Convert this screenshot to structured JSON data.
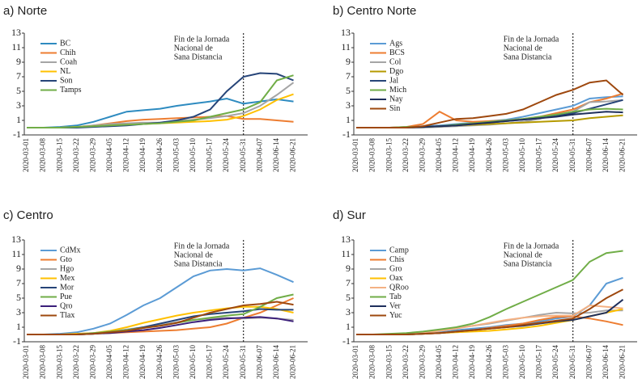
{
  "chart_data": [
    {
      "type": "line",
      "title": "a) Norte",
      "legend": "upper left",
      "vline_x": "2020-05-31",
      "annotation": [
        "Fin de la Jornada",
        "Nacional de",
        "Sana Distancia"
      ],
      "ylim": [
        -1,
        13
      ],
      "yticks": [
        -1,
        1,
        3,
        5,
        7,
        9,
        11,
        13
      ],
      "x": [
        "2020-03-01",
        "2020-03-08",
        "2020-03-15",
        "2020-03-22",
        "2020-03-29",
        "2020-04-05",
        "2020-04-12",
        "2020-04-19",
        "2020-04-26",
        "2020-05-03",
        "2020-05-10",
        "2020-05-17",
        "2020-05-24",
        "2020-05-31",
        "2020-06-07",
        "2020-06-14",
        "2020-06-21"
      ],
      "series": [
        {
          "name": "BC",
          "color": "#2e8bc0",
          "values": [
            0,
            0,
            0.1,
            0.3,
            0.8,
            1.5,
            2.2,
            2.4,
            2.6,
            3.0,
            3.3,
            3.6,
            4.0,
            3.3,
            3.6,
            3.9,
            3.6
          ]
        },
        {
          "name": "Chih",
          "color": "#ed7d31",
          "values": [
            0,
            0,
            0,
            0.1,
            0.3,
            0.6,
            0.9,
            1.1,
            1.2,
            1.3,
            1.4,
            1.5,
            1.6,
            1.2,
            1.2,
            1.0,
            0.8
          ]
        },
        {
          "name": "Coah",
          "color": "#a5a5a5",
          "values": [
            0,
            0,
            0,
            0.1,
            0.3,
            0.5,
            0.6,
            0.7,
            0.7,
            0.9,
            1.1,
            1.3,
            1.6,
            2.0,
            3.0,
            4.5,
            6.2
          ]
        },
        {
          "name": "NL",
          "color": "#ffc000",
          "values": [
            0,
            0,
            0,
            0.1,
            0.2,
            0.3,
            0.4,
            0.5,
            0.6,
            0.7,
            0.8,
            0.9,
            1.1,
            1.6,
            2.5,
            3.8,
            4.6
          ]
        },
        {
          "name": "Son",
          "color": "#264478",
          "values": [
            0,
            0,
            0,
            0,
            0.1,
            0.2,
            0.3,
            0.5,
            0.7,
            1.0,
            1.5,
            2.5,
            5.0,
            7.0,
            7.5,
            7.4,
            6.5
          ]
        },
        {
          "name": "Tamps",
          "color": "#70ad47",
          "values": [
            0,
            0,
            0,
            0.1,
            0.2,
            0.3,
            0.4,
            0.5,
            0.6,
            0.8,
            1.0,
            1.5,
            2.0,
            2.5,
            3.5,
            6.5,
            7.2
          ]
        }
      ]
    },
    {
      "type": "line",
      "title": "b) Centro Norte",
      "legend": "upper left",
      "vline_x": "2020-05-31",
      "annotation": [
        "Fin de la Jornada",
        "Nacional de",
        "Sana Distancia"
      ],
      "ylim": [
        -1,
        13
      ],
      "yticks": [
        -1,
        1,
        3,
        5,
        7,
        9,
        11,
        13
      ],
      "x": [
        "2020-03-01",
        "2020-03-08",
        "2020-03-15",
        "2020-03-22",
        "2020-03-29",
        "2020-04-05",
        "2020-04-12",
        "2020-04-19",
        "2020-04-26",
        "2020-05-03",
        "2020-05-10",
        "2020-05-17",
        "2020-05-24",
        "2020-05-31",
        "2020-06-07",
        "2020-06-14",
        "2020-06-21"
      ],
      "series": [
        {
          "name": "Ags",
          "color": "#5b9bd5",
          "values": [
            0,
            0,
            0,
            0.1,
            0.2,
            0.3,
            0.5,
            0.7,
            0.9,
            1.1,
            1.5,
            2.0,
            2.5,
            3.0,
            4.0,
            4.2,
            4.3
          ]
        },
        {
          "name": "BCS",
          "color": "#ed7d31",
          "values": [
            0,
            0,
            0,
            0.1,
            0.5,
            2.2,
            1.0,
            0.8,
            0.9,
            1.0,
            1.2,
            1.5,
            2.0,
            2.5,
            3.5,
            4.0,
            4.7
          ]
        },
        {
          "name": "Col",
          "color": "#a5a5a5",
          "values": [
            0,
            0,
            0,
            0,
            0,
            0.1,
            0.2,
            0.3,
            0.4,
            0.6,
            0.8,
            1.2,
            1.8,
            2.2,
            3.5,
            3.6,
            3.8
          ]
        },
        {
          "name": "Dgo",
          "color": "#b59a00",
          "values": [
            0,
            0,
            0,
            0,
            0.1,
            0.2,
            0.3,
            0.4,
            0.5,
            0.6,
            0.7,
            0.8,
            0.9,
            1.0,
            1.3,
            1.5,
            1.7
          ]
        },
        {
          "name": "Jal",
          "color": "#264478",
          "values": [
            0,
            0,
            0,
            0,
            0.1,
            0.2,
            0.3,
            0.5,
            0.7,
            0.9,
            1.1,
            1.3,
            1.6,
            2.0,
            2.6,
            3.2,
            3.8
          ]
        },
        {
          "name": "Mich",
          "color": "#70ad47",
          "values": [
            0,
            0,
            0,
            0.1,
            0.1,
            0.2,
            0.4,
            0.6,
            0.8,
            1.0,
            1.2,
            1.5,
            1.8,
            2.2,
            2.5,
            2.6,
            2.5
          ]
        },
        {
          "name": "Nay",
          "color": "#1f2f5c",
          "values": [
            0,
            0,
            0,
            0,
            0.1,
            0.2,
            0.3,
            0.5,
            0.7,
            0.9,
            1.1,
            1.3,
            1.5,
            1.8,
            2.0,
            2.2,
            2.1
          ]
        },
        {
          "name": "Sin",
          "color": "#9e480e",
          "values": [
            0,
            0,
            0,
            0,
            0.2,
            0.7,
            1.2,
            1.3,
            1.6,
            1.9,
            2.5,
            3.5,
            4.5,
            5.2,
            6.2,
            6.5,
            4.5
          ]
        }
      ]
    },
    {
      "type": "line",
      "title": "c) Centro",
      "legend": "upper left",
      "vline_x": "2020-05-31",
      "annotation": [
        "Fin de la Jornada",
        "Nacional de",
        "Sana Distancia"
      ],
      "ylim": [
        -1,
        13
      ],
      "yticks": [
        -1,
        1,
        3,
        5,
        7,
        9,
        11,
        13
      ],
      "x": [
        "2020-03-01",
        "2020-03-08",
        "2020-03-15",
        "2020-03-22",
        "2020-03-29",
        "2020-04-05",
        "2020-04-12",
        "2020-04-19",
        "2020-04-26",
        "2020-05-03",
        "2020-05-10",
        "2020-05-17",
        "2020-05-24",
        "2020-05-31",
        "2020-06-07",
        "2020-06-14",
        "2020-06-21"
      ],
      "series": [
        {
          "name": "CdMx",
          "color": "#5b9bd5",
          "values": [
            0,
            0,
            0.1,
            0.3,
            0.8,
            1.5,
            2.7,
            4.0,
            5.0,
            6.5,
            8.0,
            8.8,
            9.0,
            8.8,
            9.1,
            8.2,
            7.2
          ]
        },
        {
          "name": "Gto",
          "color": "#ed7d31",
          "values": [
            0,
            0,
            0,
            0,
            0.1,
            0.2,
            0.3,
            0.4,
            0.5,
            0.6,
            0.8,
            1.0,
            1.5,
            2.3,
            3.0,
            4.0,
            5.0
          ]
        },
        {
          "name": "Hgo",
          "color": "#a5a5a5",
          "values": [
            0,
            0,
            0,
            0.1,
            0.2,
            0.4,
            0.7,
            1.0,
            1.3,
            1.7,
            2.0,
            2.2,
            2.3,
            2.2,
            2.3,
            2.2,
            2.0
          ]
        },
        {
          "name": "Mex",
          "color": "#ffc000",
          "values": [
            0,
            0,
            0,
            0.1,
            0.2,
            0.5,
            1.0,
            1.6,
            2.1,
            2.6,
            3.0,
            3.3,
            3.6,
            3.8,
            3.8,
            3.5,
            3.0
          ]
        },
        {
          "name": "Mor",
          "color": "#264478",
          "values": [
            0,
            0,
            0,
            0,
            0.1,
            0.3,
            0.6,
            1.0,
            1.5,
            2.0,
            2.5,
            2.8,
            3.0,
            3.2,
            3.5,
            3.4,
            3.4
          ]
        },
        {
          "name": "Pue",
          "color": "#70ad47",
          "values": [
            0,
            0,
            0,
            0,
            0.2,
            0.4,
            0.6,
            0.9,
            1.2,
            1.6,
            2.0,
            2.3,
            2.6,
            2.8,
            3.8,
            5.0,
            5.5
          ]
        },
        {
          "name": "Qro",
          "color": "#3b1f7a",
          "values": [
            0,
            0,
            0,
            0,
            0.1,
            0.2,
            0.4,
            0.6,
            0.9,
            1.3,
            1.7,
            2.0,
            2.2,
            2.3,
            2.4,
            2.2,
            1.8
          ]
        },
        {
          "name": "Tlax",
          "color": "#9e480e",
          "values": [
            0,
            0,
            0,
            0,
            0.1,
            0.3,
            0.5,
            0.9,
            1.2,
            1.6,
            2.3,
            3.0,
            3.5,
            4.0,
            4.2,
            4.5,
            4.1
          ]
        }
      ]
    },
    {
      "type": "line",
      "title": "d) Sur",
      "legend": "upper left",
      "vline_x": "2020-05-31",
      "annotation": [
        "Fin de la Jornada",
        "Nacional de",
        "Sana Distancia"
      ],
      "ylim": [
        -1,
        13
      ],
      "yticks": [
        -1,
        1,
        3,
        5,
        7,
        9,
        11,
        13
      ],
      "x": [
        "2020-03-01",
        "2020-03-08",
        "2020-03-15",
        "2020-03-22",
        "2020-03-29",
        "2020-04-05",
        "2020-04-12",
        "2020-04-19",
        "2020-04-26",
        "2020-05-03",
        "2020-05-10",
        "2020-05-17",
        "2020-05-24",
        "2020-05-31",
        "2020-06-07",
        "2020-06-14",
        "2020-06-21"
      ],
      "series": [
        {
          "name": "Camp",
          "color": "#5b9bd5",
          "values": [
            0,
            0,
            0,
            0,
            0.1,
            0.3,
            0.6,
            0.8,
            1.0,
            1.3,
            1.5,
            1.8,
            2.2,
            2.5,
            4.0,
            7.0,
            7.8
          ]
        },
        {
          "name": "Chis",
          "color": "#ed7d31",
          "values": [
            0,
            0,
            0,
            0,
            0.1,
            0.2,
            0.4,
            0.6,
            0.9,
            1.2,
            1.5,
            2.0,
            2.4,
            2.5,
            2.2,
            1.8,
            1.3
          ]
        },
        {
          "name": "Gro",
          "color": "#a5a5a5",
          "values": [
            0,
            0,
            0,
            0.1,
            0.3,
            0.6,
            0.9,
            1.2,
            1.5,
            1.9,
            2.3,
            2.7,
            3.0,
            2.9,
            3.0,
            3.3,
            3.3
          ]
        },
        {
          "name": "Oax",
          "color": "#ffc000",
          "values": [
            0,
            0,
            0,
            0,
            0.1,
            0.2,
            0.3,
            0.4,
            0.5,
            0.7,
            0.9,
            1.2,
            1.6,
            2.0,
            2.5,
            3.0,
            3.5
          ]
        },
        {
          "name": "QRoo",
          "color": "#f4b183",
          "values": [
            0,
            0,
            0,
            0.1,
            0.2,
            0.5,
            0.8,
            1.2,
            1.6,
            2.0,
            2.3,
            2.5,
            2.6,
            2.6,
            4.0,
            3.8,
            3.6
          ]
        },
        {
          "name": "Tab",
          "color": "#70ad47",
          "values": [
            0,
            0,
            0.1,
            0.2,
            0.4,
            0.7,
            1.0,
            1.5,
            2.4,
            3.5,
            4.5,
            5.5,
            6.5,
            7.5,
            10.0,
            11.2,
            11.5
          ]
        },
        {
          "name": "Ver",
          "color": "#1f2f5c",
          "values": [
            0,
            0,
            0,
            0,
            0.1,
            0.2,
            0.4,
            0.6,
            0.8,
            1.0,
            1.2,
            1.5,
            1.8,
            2.0,
            2.5,
            3.0,
            4.8
          ]
        },
        {
          "name": "Yuc",
          "color": "#9e480e",
          "values": [
            0,
            0,
            0,
            0,
            0.1,
            0.2,
            0.4,
            0.6,
            0.8,
            1.0,
            1.3,
            1.6,
            1.9,
            2.2,
            3.5,
            5.0,
            6.2
          ]
        }
      ]
    }
  ]
}
